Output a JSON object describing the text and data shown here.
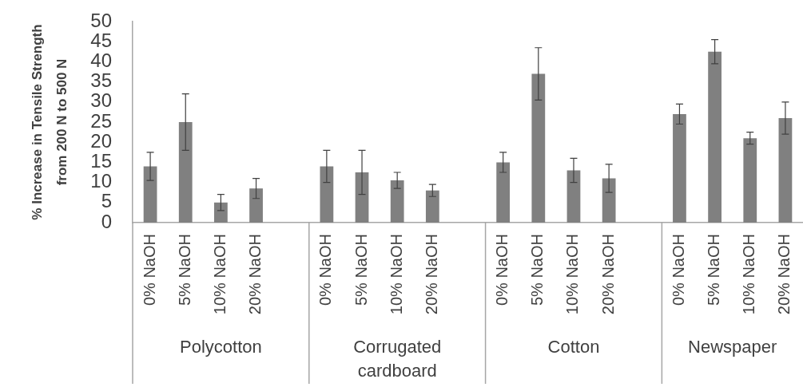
{
  "chart_data": {
    "type": "bar",
    "ylabel": "% Increase in Tensile Strength from 200 N to 500 N",
    "categories": [
      "0% NaOH",
      "5% NaOH",
      "10% NaOH",
      "20% NaOH",
      null,
      "0% NaOH",
      "5% NaOH",
      "10% NaOH",
      "20% NaOH",
      null,
      "0% NaOH",
      "5% NaOH",
      "10% NaOH",
      "20% NaOH",
      null,
      "0% NaOH",
      "5% NaOH",
      "10% NaOH",
      "20% NaOH"
    ],
    "values": [
      14,
      25,
      5,
      8.5,
      null,
      14,
      12.5,
      10.5,
      8,
      null,
      15,
      37,
      13,
      11,
      null,
      27,
      42.5,
      21,
      26
    ],
    "errors": [
      3.5,
      7,
      2,
      2.5,
      null,
      4,
      5.5,
      2,
      1.5,
      null,
      2.5,
      6.5,
      3,
      3.5,
      null,
      2.5,
      3,
      1.5,
      4
    ],
    "color": "#808080",
    "ylim": [
      0,
      50
    ],
    "yticks": [
      0,
      5,
      10,
      15,
      20,
      25,
      30,
      35,
      40,
      45,
      50
    ],
    "annotations": [
      "Polycotton",
      "Corrugated cardboard",
      "Cotton",
      "Newspaper"
    ]
  }
}
